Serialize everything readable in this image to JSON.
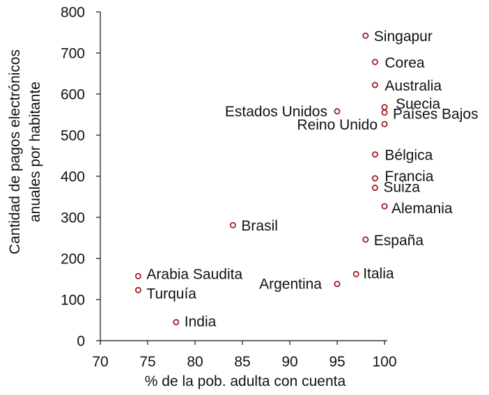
{
  "chart_data": {
    "type": "scatter",
    "xlabel": "% de la pob. adulta con cuenta",
    "ylabel_lines": [
      "Cantidad de pagos electrónicos",
      "anuales por habitante"
    ],
    "xlim": [
      70,
      100
    ],
    "ylim": [
      0,
      800
    ],
    "xticks": [
      70,
      75,
      80,
      85,
      90,
      95,
      100
    ],
    "yticks": [
      0,
      100,
      200,
      300,
      400,
      500,
      600,
      700,
      800
    ],
    "grid": false,
    "marker_color": "#a01c22",
    "points": [
      {
        "label": "Singapur",
        "x": 98,
        "y": 742
      },
      {
        "label": "Corea",
        "x": 99,
        "y": 678
      },
      {
        "label": "Australia",
        "x": 99,
        "y": 622
      },
      {
        "label": "Suecia",
        "x": 100,
        "y": 568
      },
      {
        "label": "Países Bajos",
        "x": 100,
        "y": 555
      },
      {
        "label": "Estados Unidos",
        "x": 95,
        "y": 558
      },
      {
        "label": "Reino Unido",
        "x": 100,
        "y": 527
      },
      {
        "label": "Bélgica",
        "x": 99,
        "y": 453
      },
      {
        "label": "Francia",
        "x": 99,
        "y": 395
      },
      {
        "label": "Suiza",
        "x": 99,
        "y": 372
      },
      {
        "label": "Alemania",
        "x": 100,
        "y": 327
      },
      {
        "label": "Brasil",
        "x": 84,
        "y": 281
      },
      {
        "label": "España",
        "x": 98,
        "y": 246
      },
      {
        "label": "Arabia Saudita",
        "x": 74,
        "y": 157
      },
      {
        "label": "Italia",
        "x": 97,
        "y": 162
      },
      {
        "label": "Argentina",
        "x": 95,
        "y": 138
      },
      {
        "label": "Turquía",
        "x": 74,
        "y": 123
      },
      {
        "label": "India",
        "x": 78,
        "y": 45
      }
    ]
  }
}
